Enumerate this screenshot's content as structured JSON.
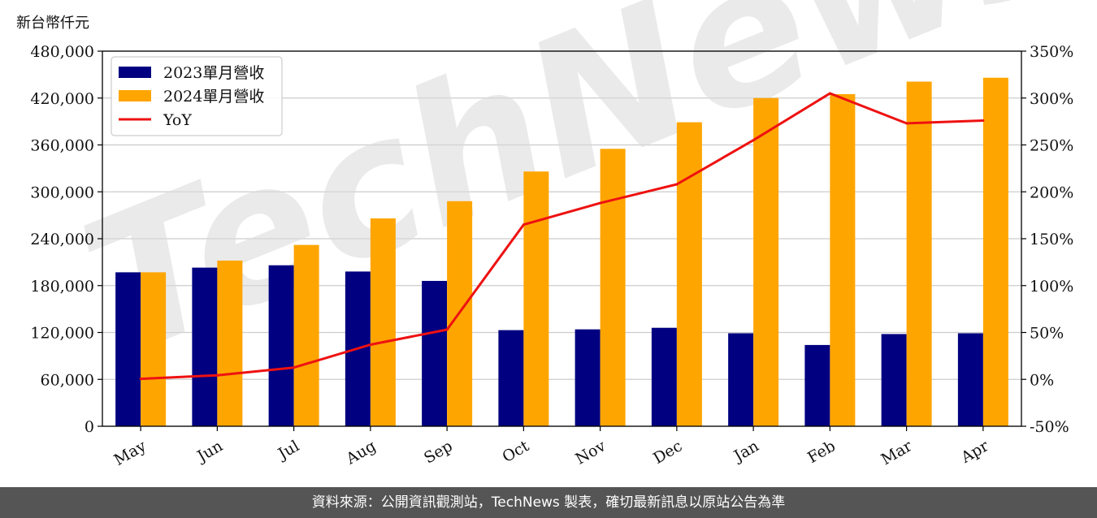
{
  "unit_label": "新台幣仟元",
  "footer": "資料來源：公開資訊觀測站，TechNews 製表，確切最新訊息以原站公告為準",
  "watermark": "TechNews",
  "colors": {
    "s2023": "#000080",
    "s2024": "#FFA500",
    "yoy": "#EE1111",
    "grid": "#cccccc"
  },
  "chart_data": {
    "type": "bar",
    "categories": [
      "May",
      "Jun",
      "Jul",
      "Aug",
      "Sep",
      "Oct",
      "Nov",
      "Dec",
      "Jan",
      "Feb",
      "Mar",
      "Apr"
    ],
    "series": [
      {
        "name": "2023單月營收",
        "type": "bar",
        "values": [
          197000,
          203000,
          206000,
          198000,
          186000,
          123000,
          124000,
          126000,
          119000,
          104000,
          118000,
          119000
        ]
      },
      {
        "name": "2024單月營收",
        "type": "bar",
        "values": [
          197000,
          212000,
          232000,
          266000,
          288000,
          326000,
          355000,
          389000,
          420000,
          425000,
          441000,
          446000
        ]
      },
      {
        "name": "YoY",
        "type": "line",
        "axis": "right",
        "values": [
          0.6,
          4.4,
          12.6,
          37,
          53,
          165,
          188,
          208,
          255,
          305,
          273,
          276
        ]
      }
    ],
    "ylim": [
      0,
      480000
    ],
    "yticks": [
      "0",
      "60,000",
      "120,000",
      "180,000",
      "240,000",
      "300,000",
      "360,000",
      "420,000",
      "480,000"
    ],
    "y2lim": [
      -50,
      350
    ],
    "y2ticks": [
      "-50%",
      "0%",
      "50%",
      "100%",
      "150%",
      "200%",
      "250%",
      "300%",
      "350%"
    ],
    "grid": true,
    "legend": "top-left"
  }
}
